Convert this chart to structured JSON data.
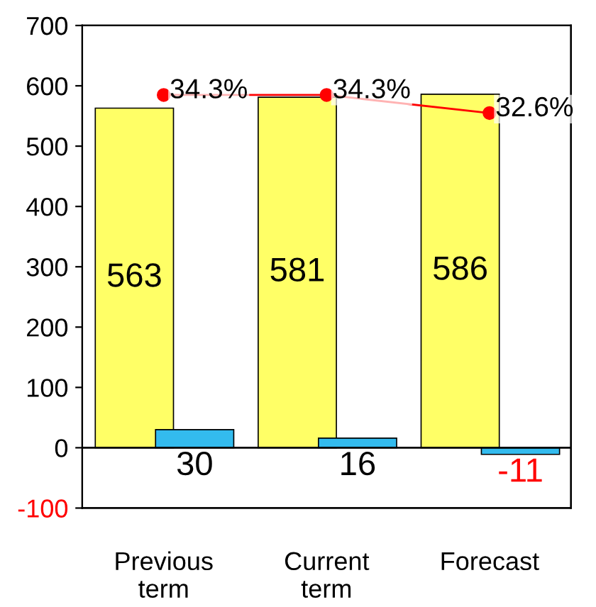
{
  "chart_data": {
    "type": "bar",
    "categories": [
      "Previous\nterm",
      "Current\nterm",
      "Forecast"
    ],
    "series": [
      {
        "color": "#ffff66",
        "values": [
          563,
          581,
          586
        ],
        "value_labels": [
          "563",
          "581",
          "586"
        ]
      },
      {
        "color": "#33bbee",
        "values": [
          30,
          16,
          -11
        ],
        "value_labels": [
          "30",
          "16",
          "-11"
        ]
      },
      {
        "type": "line",
        "axis": "y2",
        "color": "#ff0000",
        "values": [
          34.3,
          34.3,
          32.6
        ],
        "value_labels": [
          "34.3%",
          "34.3%",
          "32.6%"
        ]
      }
    ],
    "ylim": [
      -100,
      700
    ],
    "yticks": [
      -100,
      0,
      100,
      200,
      300,
      400,
      500,
      600,
      700
    ],
    "ref_lines": [
      {
        "axis": "y",
        "value": 0,
        "color": "#000000"
      }
    ],
    "marker": "circle",
    "line_style": "solid",
    "grid": false,
    "legend": false
  }
}
